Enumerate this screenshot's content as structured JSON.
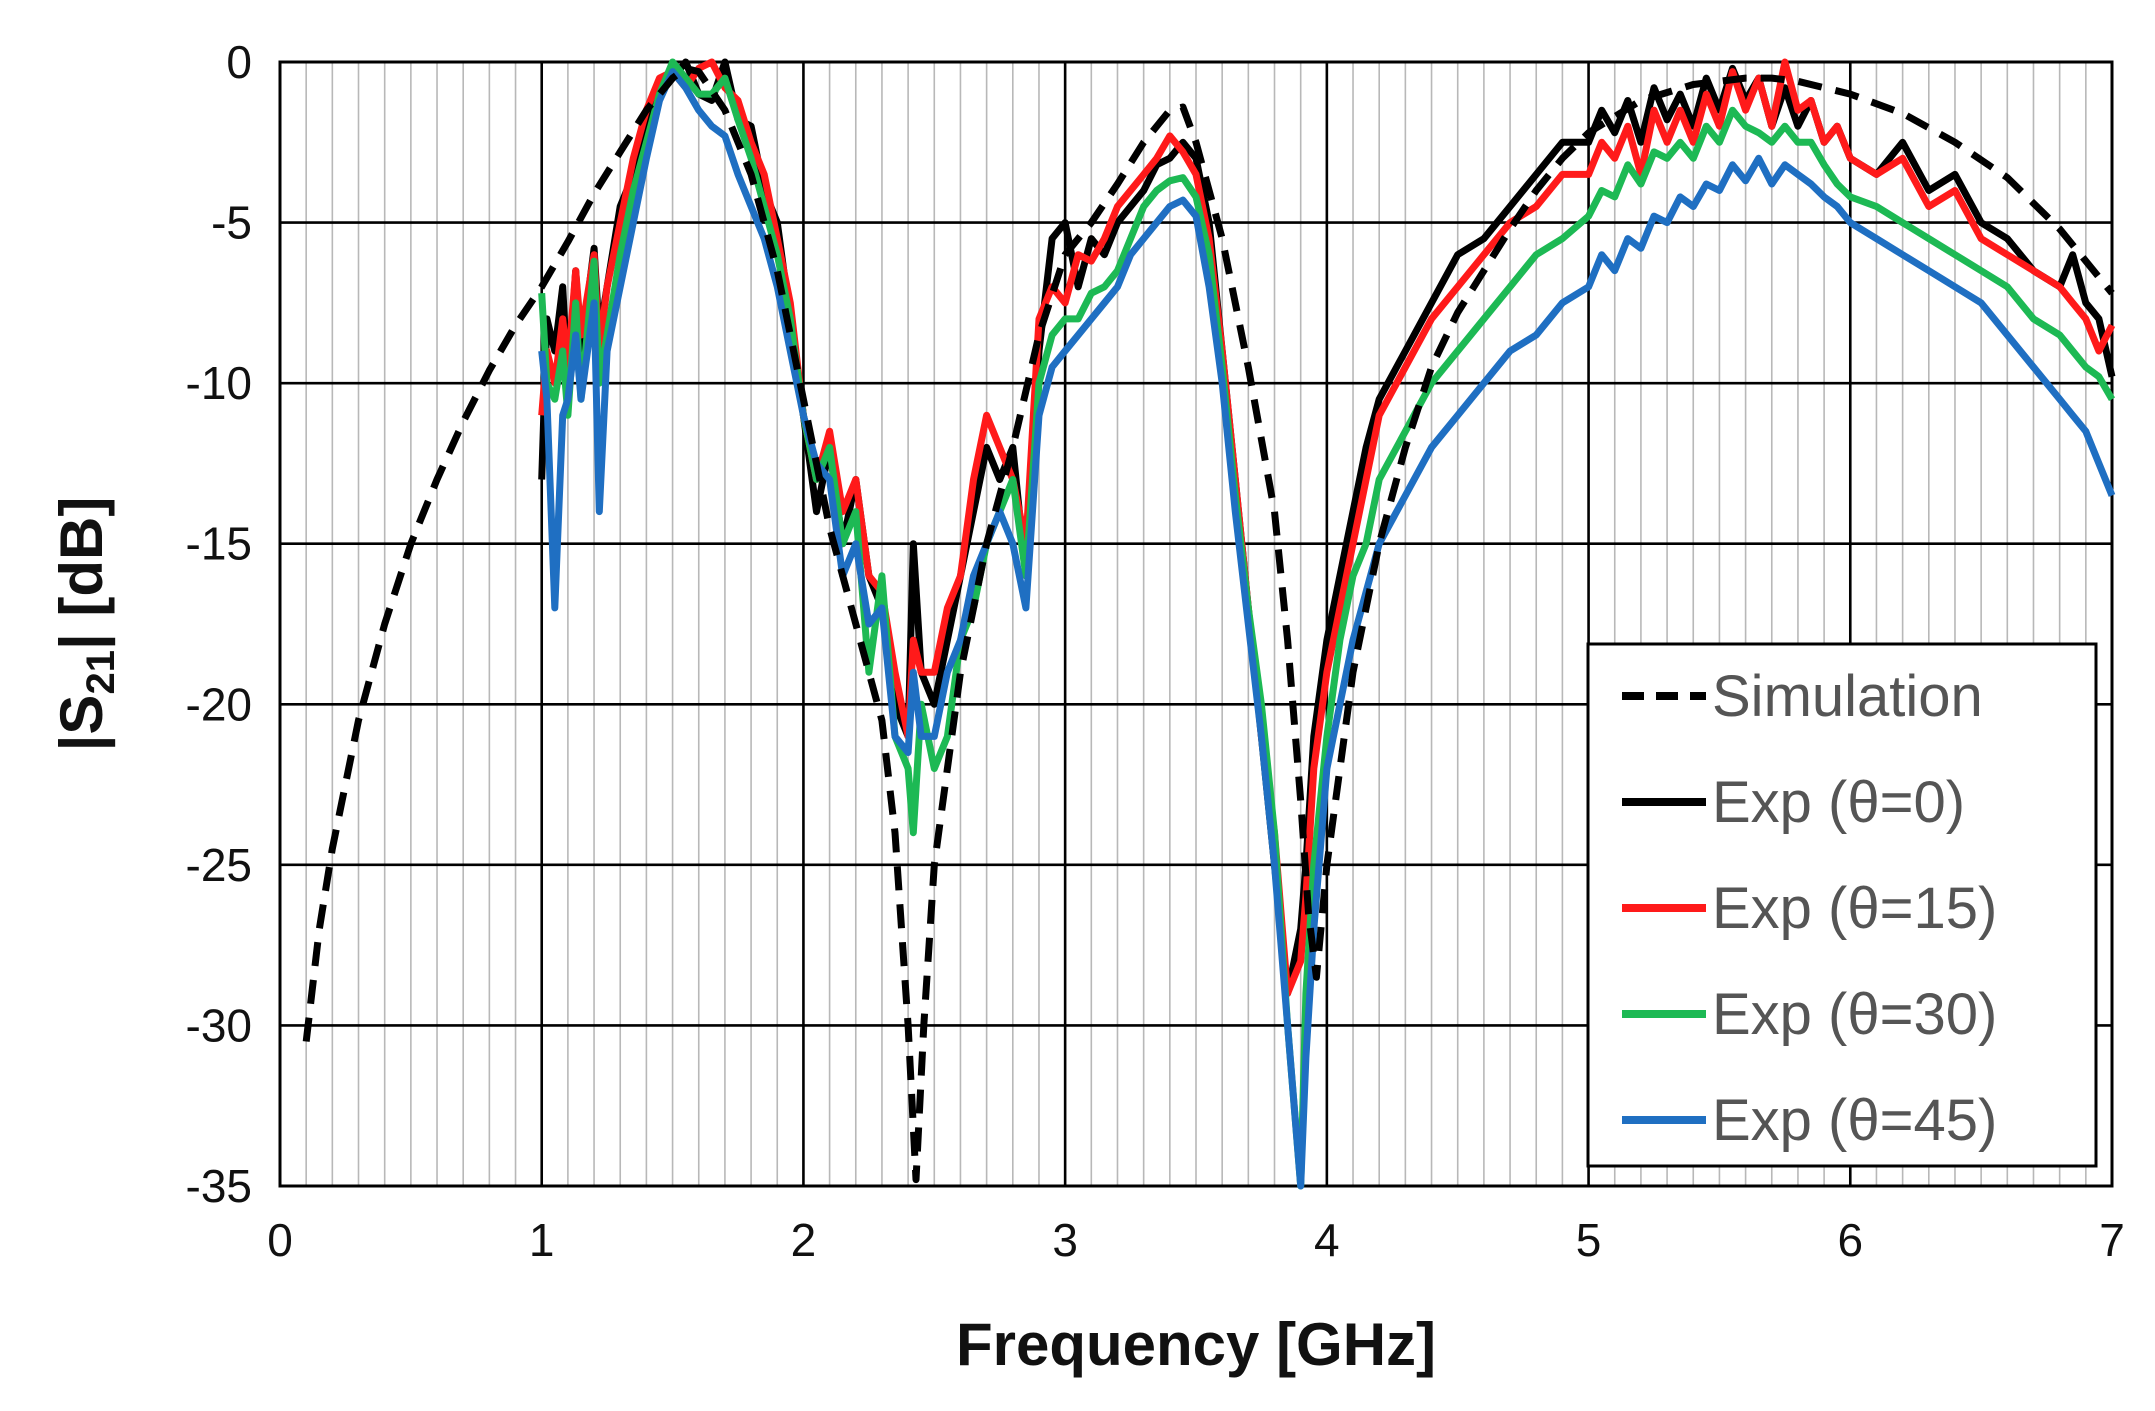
{
  "chart_data": {
    "type": "line",
    "title": "",
    "xlabel": "Frequency [GHz]",
    "ylabel_prefix": "|S",
    "ylabel_sub": "21",
    "ylabel_suffix": "| [dB]",
    "xlim": [
      0,
      7
    ],
    "ylim": [
      -35,
      0
    ],
    "xticks": [
      "0",
      "1",
      "2",
      "3",
      "4",
      "5",
      "6",
      "7"
    ],
    "yticks": [
      "0",
      "-5",
      "-10",
      "-15",
      "-20",
      "-25",
      "-30",
      "-35"
    ],
    "minor_x_step": 0.1,
    "grid": "on",
    "legend_position": "bottom-right",
    "series": [
      {
        "name": "Simulation",
        "color": "#000000",
        "dash": "dashed",
        "x": [
          0.1,
          0.15,
          0.2,
          0.3,
          0.4,
          0.5,
          0.6,
          0.7,
          0.8,
          0.9,
          1.0,
          1.1,
          1.2,
          1.3,
          1.4,
          1.5,
          1.55,
          1.6,
          1.7,
          1.8,
          1.9,
          2.0,
          2.1,
          2.2,
          2.3,
          2.35,
          2.4,
          2.43,
          2.46,
          2.5,
          2.6,
          2.7,
          2.8,
          2.9,
          3.0,
          3.1,
          3.2,
          3.3,
          3.4,
          3.45,
          3.5,
          3.6,
          3.7,
          3.8,
          3.85,
          3.9,
          3.93,
          3.96,
          4.0,
          4.1,
          4.2,
          4.3,
          4.4,
          4.5,
          4.6,
          4.7,
          4.8,
          4.9,
          5.0,
          5.2,
          5.4,
          5.6,
          5.7,
          5.8,
          6.0,
          6.2,
          6.4,
          6.6,
          6.8,
          7.0
        ],
        "y": [
          -30.5,
          -27,
          -24.5,
          -20.5,
          -17.5,
          -15,
          -13,
          -11.2,
          -9.6,
          -8.2,
          -7,
          -5.6,
          -4.1,
          -2.8,
          -1.5,
          -0.5,
          -0.2,
          -0.3,
          -1.5,
          -3.5,
          -6.5,
          -10.5,
          -14.5,
          -17.5,
          -20.5,
          -24,
          -30,
          -34.8,
          -30,
          -25,
          -19,
          -15,
          -12,
          -8.5,
          -6,
          -5,
          -3.8,
          -2.5,
          -1.5,
          -1.4,
          -2.5,
          -5.5,
          -9.5,
          -14,
          -18,
          -23,
          -26.5,
          -28.5,
          -25,
          -19,
          -15,
          -12,
          -9.5,
          -7.8,
          -6.5,
          -5.2,
          -4,
          -3,
          -2.2,
          -1.2,
          -0.7,
          -0.5,
          -0.5,
          -0.6,
          -1,
          -1.6,
          -2.5,
          -3.6,
          -5.2,
          -7.2
        ]
      },
      {
        "name": "Exp (θ=0)",
        "color": "#000000",
        "dash": "solid",
        "x": [
          1.0,
          1.02,
          1.05,
          1.08,
          1.1,
          1.13,
          1.15,
          1.2,
          1.22,
          1.25,
          1.3,
          1.35,
          1.4,
          1.45,
          1.5,
          1.55,
          1.6,
          1.65,
          1.7,
          1.75,
          1.8,
          1.85,
          1.9,
          1.95,
          2.0,
          2.05,
          2.1,
          2.15,
          2.2,
          2.25,
          2.3,
          2.35,
          2.4,
          2.42,
          2.45,
          2.5,
          2.55,
          2.6,
          2.65,
          2.7,
          2.75,
          2.8,
          2.85,
          2.9,
          2.95,
          3.0,
          3.05,
          3.1,
          3.15,
          3.2,
          3.25,
          3.3,
          3.35,
          3.4,
          3.45,
          3.5,
          3.55,
          3.6,
          3.65,
          3.7,
          3.75,
          3.8,
          3.85,
          3.9,
          3.92,
          3.95,
          4.0,
          4.05,
          4.1,
          4.15,
          4.2,
          4.3,
          4.4,
          4.5,
          4.6,
          4.7,
          4.8,
          4.9,
          5.0,
          5.05,
          5.1,
          5.15,
          5.2,
          5.25,
          5.3,
          5.35,
          5.4,
          5.45,
          5.5,
          5.55,
          5.6,
          5.65,
          5.7,
          5.75,
          5.8,
          5.85,
          5.9,
          5.95,
          6.0,
          6.1,
          6.2,
          6.3,
          6.4,
          6.5,
          6.6,
          6.7,
          6.8,
          6.85,
          6.9,
          6.95,
          7.0
        ],
        "y": [
          -13,
          -8,
          -9,
          -7,
          -10,
          -6.5,
          -9,
          -5.8,
          -8.5,
          -7,
          -4.5,
          -3.5,
          -2,
          -1,
          -0.5,
          0,
          -1,
          -1.2,
          0,
          -1.8,
          -2,
          -4,
          -5,
          -8,
          -11,
          -14,
          -12,
          -15,
          -13,
          -16,
          -17,
          -20,
          -21,
          -15,
          -19,
          -20,
          -18,
          -16,
          -14,
          -12,
          -13,
          -12,
          -16,
          -9,
          -5.5,
          -5,
          -7,
          -5.5,
          -6,
          -5,
          -4.5,
          -4,
          -3.2,
          -3,
          -2.5,
          -3,
          -5,
          -9,
          -13,
          -17,
          -21,
          -25,
          -29,
          -27,
          -25,
          -21,
          -18,
          -16,
          -14,
          -12,
          -10.5,
          -9,
          -7.5,
          -6,
          -5.5,
          -4.5,
          -3.5,
          -2.5,
          -2.5,
          -1.5,
          -2.2,
          -1.2,
          -2.5,
          -0.8,
          -1.8,
          -1,
          -2,
          -0.5,
          -1.5,
          -0.2,
          -1.2,
          -0.5,
          -2,
          -0.8,
          -2,
          -1.2,
          -2.5,
          -2,
          -3,
          -3.5,
          -2.5,
          -4,
          -3.5,
          -5,
          -5.5,
          -6.5,
          -7,
          -6,
          -7.5,
          -8,
          -9.8
        ]
      },
      {
        "name": "Exp (θ=15)",
        "color": "#ff1a1a",
        "dash": "solid",
        "x": [
          1.0,
          1.02,
          1.05,
          1.08,
          1.1,
          1.13,
          1.15,
          1.2,
          1.22,
          1.25,
          1.3,
          1.35,
          1.4,
          1.45,
          1.5,
          1.55,
          1.6,
          1.65,
          1.7,
          1.75,
          1.8,
          1.85,
          1.9,
          1.95,
          2.0,
          2.05,
          2.1,
          2.15,
          2.2,
          2.25,
          2.3,
          2.35,
          2.4,
          2.42,
          2.45,
          2.5,
          2.55,
          2.6,
          2.65,
          2.7,
          2.75,
          2.8,
          2.85,
          2.9,
          2.95,
          3.0,
          3.05,
          3.1,
          3.15,
          3.2,
          3.25,
          3.3,
          3.35,
          3.4,
          3.45,
          3.5,
          3.55,
          3.6,
          3.65,
          3.7,
          3.75,
          3.8,
          3.85,
          3.9,
          3.92,
          3.95,
          4.0,
          4.05,
          4.1,
          4.15,
          4.2,
          4.3,
          4.4,
          4.5,
          4.6,
          4.7,
          4.8,
          4.9,
          5.0,
          5.05,
          5.1,
          5.15,
          5.2,
          5.25,
          5.3,
          5.35,
          5.4,
          5.45,
          5.5,
          5.55,
          5.6,
          5.65,
          5.7,
          5.75,
          5.8,
          5.85,
          5.9,
          5.95,
          6.0,
          6.1,
          6.2,
          6.3,
          6.4,
          6.5,
          6.6,
          6.7,
          6.8,
          6.85,
          6.9,
          6.95,
          7.0
        ],
        "y": [
          -11,
          -9,
          -10,
          -8,
          -9.5,
          -6.5,
          -8.5,
          -6,
          -9,
          -7,
          -5,
          -3,
          -1.5,
          -0.5,
          -0.3,
          -0.8,
          -0.2,
          0,
          -0.8,
          -1.2,
          -2.5,
          -3.5,
          -5.5,
          -7.5,
          -11,
          -13,
          -11.5,
          -14,
          -13,
          -16,
          -16.5,
          -19,
          -21,
          -18,
          -19,
          -19,
          -17,
          -16,
          -13,
          -11,
          -12,
          -13,
          -15,
          -8,
          -7,
          -7.5,
          -6,
          -6.2,
          -5.5,
          -4.5,
          -4,
          -3.5,
          -3,
          -2.3,
          -2.8,
          -3.5,
          -5.5,
          -9,
          -13,
          -17,
          -21,
          -24,
          -29,
          -28,
          -26,
          -22,
          -19,
          -17,
          -15,
          -13,
          -11,
          -9.5,
          -8,
          -7,
          -6,
          -5,
          -4.5,
          -3.5,
          -3.5,
          -2.5,
          -3,
          -2,
          -3.5,
          -1.5,
          -2.5,
          -1.5,
          -2.5,
          -1,
          -2,
          -0.3,
          -1.5,
          -0.5,
          -2,
          0,
          -1.5,
          -1.2,
          -2.5,
          -2,
          -3,
          -3.5,
          -3,
          -4.5,
          -4,
          -5.5,
          -6,
          -6.5,
          -7,
          -7.5,
          -8,
          -9,
          -8.2
        ]
      },
      {
        "name": "Exp (θ=30)",
        "color": "#1db954",
        "dash": "solid",
        "x": [
          1.0,
          1.02,
          1.05,
          1.08,
          1.1,
          1.13,
          1.15,
          1.2,
          1.22,
          1.25,
          1.3,
          1.35,
          1.4,
          1.45,
          1.5,
          1.55,
          1.6,
          1.65,
          1.7,
          1.75,
          1.8,
          1.85,
          1.9,
          1.95,
          2.0,
          2.05,
          2.1,
          2.15,
          2.2,
          2.25,
          2.3,
          2.35,
          2.4,
          2.42,
          2.45,
          2.5,
          2.55,
          2.6,
          2.65,
          2.7,
          2.75,
          2.8,
          2.85,
          2.9,
          2.95,
          3.0,
          3.05,
          3.1,
          3.15,
          3.2,
          3.25,
          3.3,
          3.35,
          3.4,
          3.45,
          3.5,
          3.55,
          3.6,
          3.65,
          3.7,
          3.75,
          3.8,
          3.85,
          3.9,
          3.92,
          3.95,
          4.0,
          4.05,
          4.1,
          4.15,
          4.2,
          4.3,
          4.4,
          4.5,
          4.6,
          4.7,
          4.8,
          4.9,
          5.0,
          5.05,
          5.1,
          5.15,
          5.2,
          5.25,
          5.3,
          5.35,
          5.4,
          5.45,
          5.5,
          5.55,
          5.6,
          5.65,
          5.7,
          5.75,
          5.8,
          5.85,
          5.9,
          5.95,
          6.0,
          6.1,
          6.2,
          6.3,
          6.4,
          6.5,
          6.6,
          6.7,
          6.8,
          6.85,
          6.9,
          6.95,
          7.0
        ],
        "y": [
          -7.2,
          -10,
          -10.5,
          -9,
          -11,
          -7.5,
          -10.5,
          -6.2,
          -10,
          -8.5,
          -6,
          -4,
          -2.5,
          -1,
          0,
          -0.5,
          -1,
          -1,
          -0.5,
          -1.8,
          -3,
          -4.5,
          -6,
          -8,
          -11,
          -13,
          -12,
          -15,
          -14,
          -19,
          -16,
          -21,
          -22,
          -24,
          -20,
          -22,
          -21,
          -18,
          -17,
          -15,
          -14,
          -13,
          -16,
          -10,
          -8.5,
          -8,
          -8,
          -7.2,
          -7,
          -6.5,
          -5.5,
          -4.5,
          -4,
          -3.7,
          -3.6,
          -4.2,
          -6,
          -9.5,
          -13.5,
          -17,
          -20,
          -24,
          -30,
          -35,
          -29,
          -25,
          -21,
          -18,
          -16,
          -15,
          -13,
          -11.5,
          -10,
          -9,
          -8,
          -7,
          -6,
          -5.5,
          -4.8,
          -4,
          -4.2,
          -3.2,
          -3.8,
          -2.8,
          -3,
          -2.5,
          -3,
          -2,
          -2.5,
          -1.5,
          -2,
          -2.2,
          -2.5,
          -2,
          -2.5,
          -2.5,
          -3.2,
          -3.8,
          -4.2,
          -4.5,
          -5,
          -5.5,
          -6,
          -6.5,
          -7,
          -8,
          -8.5,
          -9,
          -9.5,
          -9.8,
          -10.5
        ]
      },
      {
        "name": "Exp (θ=45)",
        "color": "#1f6fc2",
        "dash": "solid",
        "x": [
          1.0,
          1.02,
          1.05,
          1.08,
          1.1,
          1.13,
          1.15,
          1.2,
          1.22,
          1.25,
          1.3,
          1.35,
          1.4,
          1.45,
          1.5,
          1.55,
          1.6,
          1.65,
          1.7,
          1.75,
          1.8,
          1.85,
          1.9,
          1.95,
          2.0,
          2.05,
          2.1,
          2.15,
          2.2,
          2.25,
          2.3,
          2.35,
          2.4,
          2.42,
          2.45,
          2.5,
          2.55,
          2.6,
          2.65,
          2.7,
          2.75,
          2.8,
          2.85,
          2.9,
          2.95,
          3.0,
          3.05,
          3.1,
          3.15,
          3.2,
          3.25,
          3.3,
          3.35,
          3.4,
          3.45,
          3.5,
          3.55,
          3.6,
          3.65,
          3.7,
          3.75,
          3.8,
          3.85,
          3.9,
          3.92,
          3.95,
          4.0,
          4.05,
          4.1,
          4.15,
          4.2,
          4.3,
          4.4,
          4.5,
          4.6,
          4.7,
          4.8,
          4.9,
          5.0,
          5.05,
          5.1,
          5.15,
          5.2,
          5.25,
          5.3,
          5.35,
          5.4,
          5.45,
          5.5,
          5.55,
          5.6,
          5.65,
          5.7,
          5.75,
          5.8,
          5.85,
          5.9,
          5.95,
          6.0,
          6.1,
          6.2,
          6.3,
          6.4,
          6.5,
          6.6,
          6.7,
          6.8,
          6.85,
          6.9,
          6.95,
          7.0
        ],
        "y": [
          -9,
          -10.5,
          -17,
          -11,
          -10.5,
          -8.5,
          -10.5,
          -7.5,
          -14,
          -9,
          -7,
          -5,
          -3,
          -1.2,
          -0.3,
          -0.8,
          -1.5,
          -2,
          -2.3,
          -3.5,
          -4.5,
          -5.5,
          -7,
          -9,
          -11,
          -12.5,
          -13,
          -16,
          -15,
          -17.5,
          -17,
          -21,
          -21.5,
          -19,
          -21,
          -21,
          -19,
          -18,
          -16,
          -15,
          -14,
          -15,
          -17,
          -11,
          -9.5,
          -9,
          -8.5,
          -8,
          -7.5,
          -7,
          -6,
          -5.5,
          -5,
          -4.5,
          -4.3,
          -4.8,
          -7,
          -10,
          -14,
          -17.5,
          -21,
          -25,
          -30,
          -35,
          -31,
          -27,
          -22,
          -20,
          -18,
          -16.5,
          -15,
          -13.5,
          -12,
          -11,
          -10,
          -9,
          -8.5,
          -7.5,
          -7,
          -6,
          -6.5,
          -5.5,
          -5.8,
          -4.8,
          -5,
          -4.2,
          -4.5,
          -3.8,
          -4,
          -3.2,
          -3.7,
          -3,
          -3.8,
          -3.2,
          -3.5,
          -3.8,
          -4.2,
          -4.5,
          -5,
          -5.5,
          -6,
          -6.5,
          -7,
          -7.5,
          -8.5,
          -9.5,
          -10.5,
          -11,
          -11.5,
          -12.5,
          -13.5
        ]
      }
    ]
  }
}
